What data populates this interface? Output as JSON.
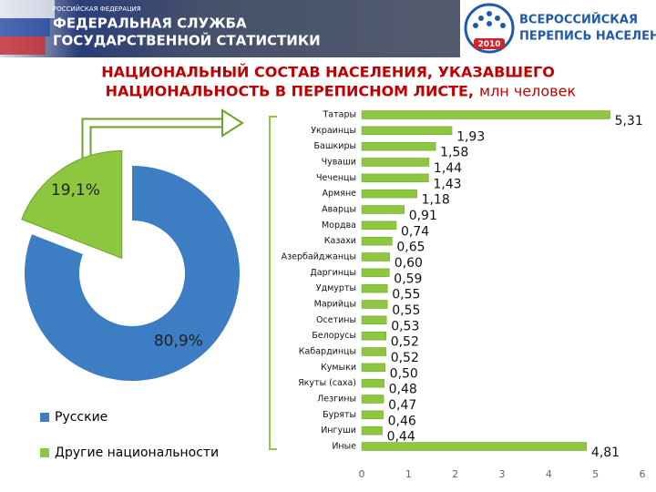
{
  "header": {
    "country": "РОССИЙСКАЯ ФЕДЕРАЦИЯ",
    "org_line1": "ФЕДЕРАЛЬНАЯ СЛУЖБА",
    "org_line2": "ГОСУДАРСТВЕННОЙ СТАТИСТИКИ",
    "logo_line1": "ВСЕРОССИЙСКАЯ",
    "logo_line2": "ПЕРЕПИСЬ НАСЕЛЕНИЯ",
    "logo_year": "2010"
  },
  "slide_title_line1": "НАЦИОНАЛЬНЫЙ СОСТАВ НАСЕЛЕНИЯ, УКАЗАВШЕГО",
  "slide_title_line2": "НАЦИОНАЛЬНОСТЬ В ПЕРЕПИСНОМ ЛИСТЕ,",
  "slide_unit": "млн человек",
  "chart_data": [
    {
      "type": "pie",
      "donut": true,
      "categories": [
        "Русские",
        "Другие национальности"
      ],
      "values": [
        80.9,
        19.1
      ],
      "value_labels": [
        "80,9%",
        "19,1%"
      ],
      "colors": [
        "#3c7dc4",
        "#8dc63f"
      ]
    },
    {
      "type": "bar",
      "orientation": "horizontal",
      "categories": [
        "Татары",
        "Украинцы",
        "Башкиры",
        "Чуваши",
        "Чеченцы",
        "Армяне",
        "Аварцы",
        "Мордва",
        "Казахи",
        "Азербайджанцы",
        "Даргинцы",
        "Удмурты",
        "Марийцы",
        "Осетины",
        "Белорусы",
        "Кабардинцы",
        "Кумыки",
        "Якуты (саха)",
        "Лезгины",
        "Буряты",
        "Ингуши",
        "Иные"
      ],
      "values": [
        5.31,
        1.93,
        1.58,
        1.44,
        1.43,
        1.18,
        0.91,
        0.74,
        0.65,
        0.6,
        0.59,
        0.55,
        0.55,
        0.53,
        0.52,
        0.52,
        0.5,
        0.48,
        0.47,
        0.46,
        0.44,
        4.81
      ],
      "value_labels": [
        "5,31",
        "1,93",
        "1,58",
        "1,44",
        "1,43",
        "1,18",
        "0,91",
        "0,74",
        "0,65",
        "0,60",
        "0,59",
        "0,55",
        "0,55",
        "0,53",
        "0,52",
        "0,52",
        "0,50",
        "0,48",
        "0,47",
        "0,46",
        "0,44",
        "4,81"
      ],
      "color": "#8dc63f",
      "xlim": [
        0,
        6
      ],
      "xticks": [
        0,
        1,
        2,
        3,
        4,
        5,
        6
      ],
      "grid": false
    }
  ]
}
